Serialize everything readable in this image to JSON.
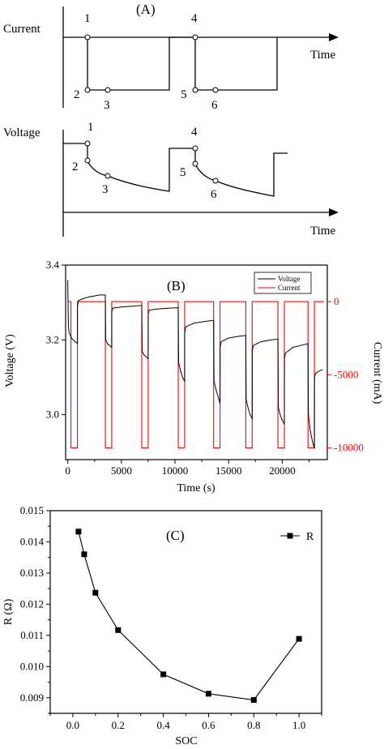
{
  "panel_a": {
    "label": "(A)",
    "current_label": "Current",
    "voltage_label": "Voltage",
    "time_label_top": "Time",
    "time_label_bottom": "Time",
    "current_points": [
      "1",
      "2",
      "3",
      "4",
      "5",
      "6"
    ],
    "voltage_points": [
      "1",
      "2",
      "3",
      "4",
      "5",
      "6"
    ]
  },
  "chart_data": [
    {
      "type": "line",
      "panel": "(B)",
      "xlabel": "Time (s)",
      "ylabel": "Voltage (V)",
      "y2label": "Current (mA)",
      "xlim": [
        -200,
        24200
      ],
      "ylim": [
        2.88,
        3.4
      ],
      "y2lim": [
        -10800,
        2500
      ],
      "xticks": [
        0,
        5000,
        10000,
        15000,
        20000
      ],
      "yticks": [
        3.0,
        3.2,
        3.4
      ],
      "y2ticks": [
        0,
        -5000,
        -10000
      ],
      "legend_position": "top-right",
      "grid": false,
      "colors": {
        "voltage": "#000000",
        "current": "#ff0000"
      },
      "pulses": [
        {
          "start": 300,
          "end": 900
        },
        {
          "start": 3500,
          "end": 4100
        },
        {
          "start": 6900,
          "end": 7500
        },
        {
          "start": 10300,
          "end": 10900
        },
        {
          "start": 13600,
          "end": 14200
        },
        {
          "start": 16600,
          "end": 17200
        },
        {
          "start": 19600,
          "end": 20200
        },
        {
          "start": 22400,
          "end": 23000
        }
      ],
      "series": [
        {
          "name": "Voltage",
          "axis": "left",
          "x": [
            0,
            60,
            120,
            200,
            300,
            340,
            500,
            700,
            900,
            905,
            1000,
            1400,
            2000,
            3000,
            3500,
            3540,
            3700,
            3900,
            4100,
            4105,
            4200,
            5000,
            6000,
            6900,
            6940,
            7100,
            7300,
            7500,
            7505,
            7600,
            8500,
            9500,
            10300,
            10340,
            10500,
            10700,
            10900,
            10905,
            11000,
            11800,
            13000,
            13600,
            13640,
            13800,
            14000,
            14200,
            14205,
            14300,
            15000,
            16000,
            16600,
            16640,
            16800,
            17000,
            17200,
            17205,
            17300,
            18000,
            19000,
            19600,
            19640,
            19800,
            20000,
            20200,
            20205,
            20300,
            21000,
            22000,
            22400,
            22440,
            22600,
            22800,
            23000,
            23005,
            23100,
            23500,
            23800
          ],
          "y": [
            3.36,
            3.24,
            3.22,
            3.215,
            3.21,
            3.205,
            3.2,
            3.195,
            3.19,
            3.29,
            3.305,
            3.31,
            3.315,
            3.32,
            3.32,
            3.2,
            3.19,
            3.185,
            3.18,
            3.275,
            3.285,
            3.288,
            3.29,
            3.292,
            3.17,
            3.16,
            3.155,
            3.15,
            3.27,
            3.28,
            3.283,
            3.285,
            3.286,
            3.14,
            3.12,
            3.1,
            3.09,
            3.22,
            3.235,
            3.245,
            3.25,
            3.252,
            3.09,
            3.07,
            3.05,
            3.03,
            3.18,
            3.195,
            3.205,
            3.21,
            3.212,
            3.04,
            3.02,
            3.0,
            2.99,
            3.17,
            3.185,
            3.195,
            3.2,
            3.202,
            3.02,
            3.0,
            2.985,
            2.975,
            3.15,
            3.165,
            3.18,
            3.187,
            3.19,
            3.0,
            2.96,
            2.93,
            2.91,
            3.1,
            3.11,
            3.118,
            3.12
          ]
        },
        {
          "name": "Current",
          "axis": "right",
          "on_value": -10000,
          "off_value": 0
        }
      ]
    },
    {
      "type": "line",
      "panel": "(C)",
      "xlabel": "SOC",
      "ylabel": "R (Ω)",
      "xlim": [
        -0.1,
        1.1
      ],
      "ylim": [
        0.0085,
        0.015
      ],
      "xticks": [
        0.0,
        0.2,
        0.4,
        0.6,
        0.8,
        1.0
      ],
      "xtick_labels": [
        "0.0",
        "0.2",
        "0.4",
        "0.6",
        "0.8",
        "1.0"
      ],
      "yticks": [
        0.009,
        0.01,
        0.011,
        0.012,
        0.013,
        0.014,
        0.015
      ],
      "ytick_labels": [
        "0.009",
        "0.010",
        "0.011",
        "0.012",
        "0.013",
        "0.014",
        "0.015"
      ],
      "legend_position": "top-right",
      "grid": false,
      "series": [
        {
          "name": "R",
          "x": [
            0.025,
            0.05,
            0.1,
            0.2,
            0.4,
            0.6,
            0.8,
            1.0
          ],
          "y": [
            0.01433,
            0.0136,
            0.01237,
            0.01117,
            0.00975,
            0.00913,
            0.00893,
            0.01089
          ]
        }
      ]
    }
  ]
}
